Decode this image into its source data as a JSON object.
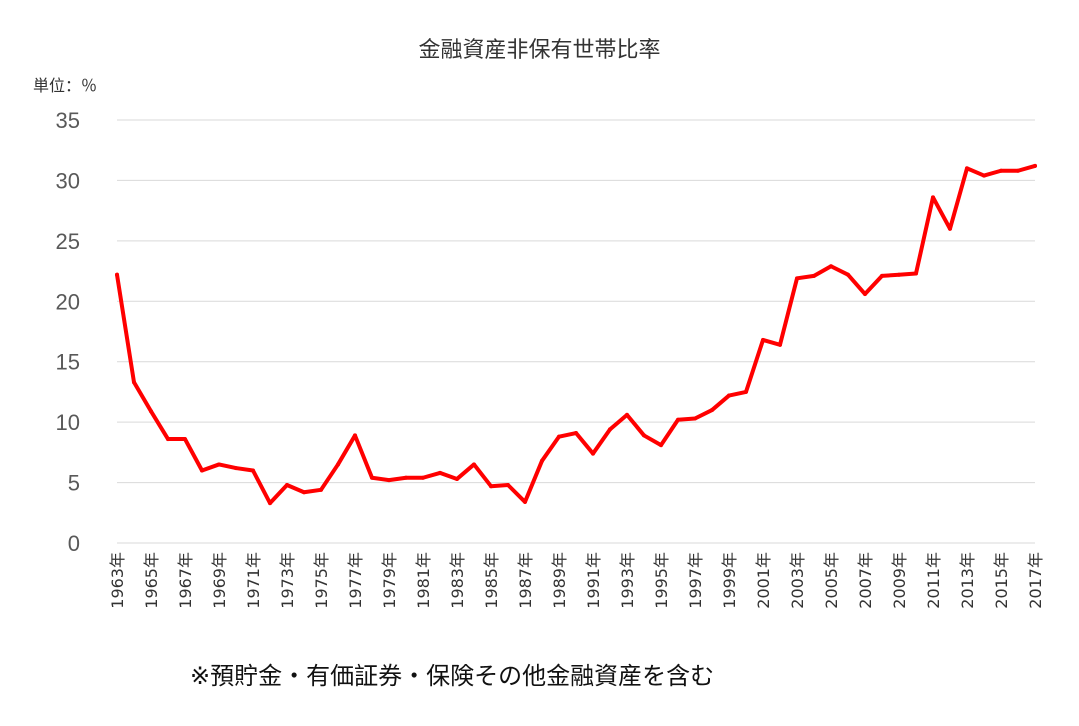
{
  "chart_data": {
    "type": "line",
    "title": "金融資産非保有世帯比率",
    "unit_label": "単位：％",
    "footnote": "※預貯金・有価証券・保険その他金融資産を含む",
    "x": [
      "1963年",
      "1964年",
      "1965年",
      "1966年",
      "1967年",
      "1968年",
      "1969年",
      "1970年",
      "1971年",
      "1972年",
      "1973年",
      "1974年",
      "1975年",
      "1976年",
      "1977年",
      "1978年",
      "1979年",
      "1980年",
      "1981年",
      "1982年",
      "1983年",
      "1984年",
      "1985年",
      "1986年",
      "1987年",
      "1988年",
      "1989年",
      "1990年",
      "1991年",
      "1992年",
      "1993年",
      "1994年",
      "1995年",
      "1996年",
      "1997年",
      "1998年",
      "1999年",
      "2000年",
      "2001年",
      "2002年",
      "2003年",
      "2004年",
      "2005年",
      "2006年",
      "2007年",
      "2008年",
      "2009年",
      "2010年",
      "2011年",
      "2012年",
      "2013年",
      "2014年",
      "2015年",
      "2016年",
      "2017年"
    ],
    "x_tick_labels": [
      "1963年",
      "1965年",
      "1967年",
      "1969年",
      "1971年",
      "1973年",
      "1975年",
      "1977年",
      "1979年",
      "1981年",
      "1983年",
      "1985年",
      "1987年",
      "1989年",
      "1991年",
      "1993年",
      "1995年",
      "1997年",
      "1999年",
      "2001年",
      "2003年",
      "2005年",
      "2007年",
      "2009年",
      "2011年",
      "2013年",
      "2015年",
      "2017年"
    ],
    "series": [
      {
        "values": [
          22.2,
          13.3,
          10.9,
          8.6,
          8.6,
          6.0,
          6.5,
          6.2,
          6.0,
          3.3,
          4.8,
          4.2,
          4.4,
          6.5,
          8.9,
          5.4,
          5.2,
          5.4,
          5.4,
          5.8,
          5.3,
          6.5,
          4.7,
          4.8,
          3.4,
          6.8,
          8.8,
          9.1,
          7.4,
          9.4,
          10.6,
          8.9,
          8.1,
          10.2,
          10.3,
          11.0,
          12.2,
          12.5,
          16.8,
          16.4,
          21.9,
          22.1,
          22.9,
          22.2,
          20.6,
          22.1,
          22.2,
          22.3,
          28.6,
          26.0,
          31.0,
          30.4,
          30.8,
          30.8,
          31.2
        ],
        "color": "#ff0000"
      }
    ],
    "y_ticks": [
      "0",
      "5",
      "10",
      "15",
      "20",
      "25",
      "30",
      "35"
    ],
    "ylim": [
      0,
      35
    ],
    "grid": true,
    "legend": "none"
  }
}
